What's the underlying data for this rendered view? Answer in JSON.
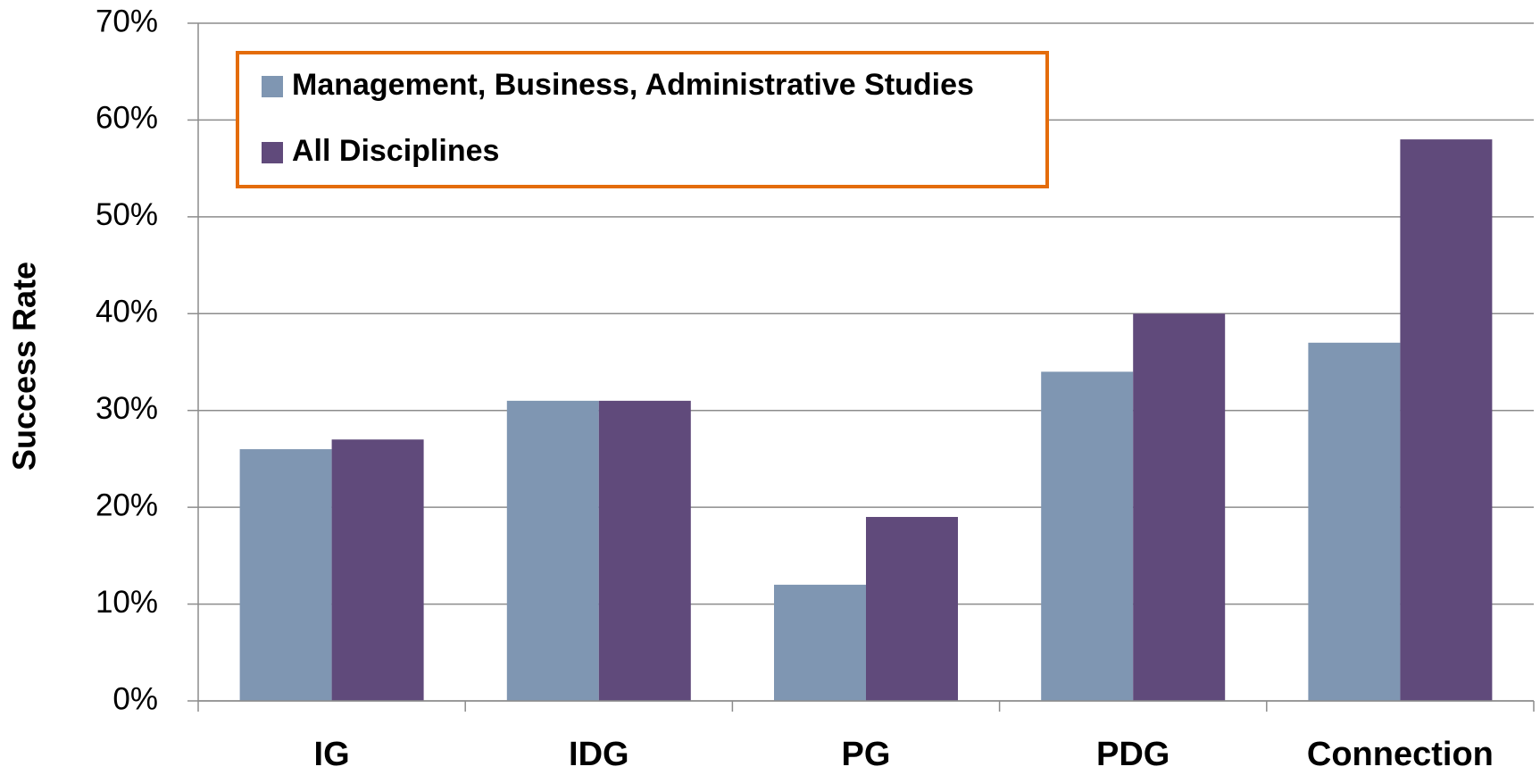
{
  "chart_data": {
    "type": "bar",
    "y_label": "Success Rate",
    "categories": [
      "IG",
      "IDG",
      "PG",
      "PDG",
      "Connection"
    ],
    "series": [
      {
        "name": "Management, Business, Administrative Studies",
        "color": "#7f96b2",
        "values": [
          26,
          31,
          12,
          34,
          37
        ]
      },
      {
        "name": "All Disciplines",
        "color": "#604a7b",
        "values": [
          27,
          31,
          19,
          40,
          58
        ]
      }
    ],
    "ylim": [
      0,
      70
    ],
    "yticks": [
      {
        "value": 0,
        "label": "0%"
      },
      {
        "value": 10,
        "label": "10%"
      },
      {
        "value": 20,
        "label": "20%"
      },
      {
        "value": 30,
        "label": "30%"
      },
      {
        "value": 40,
        "label": "40%"
      },
      {
        "value": 50,
        "label": "50%"
      },
      {
        "value": 60,
        "label": "60%"
      },
      {
        "value": 70,
        "label": "70%"
      }
    ],
    "grid": true,
    "legend": "top-left",
    "legend_border_color": "#e46c0a"
  }
}
